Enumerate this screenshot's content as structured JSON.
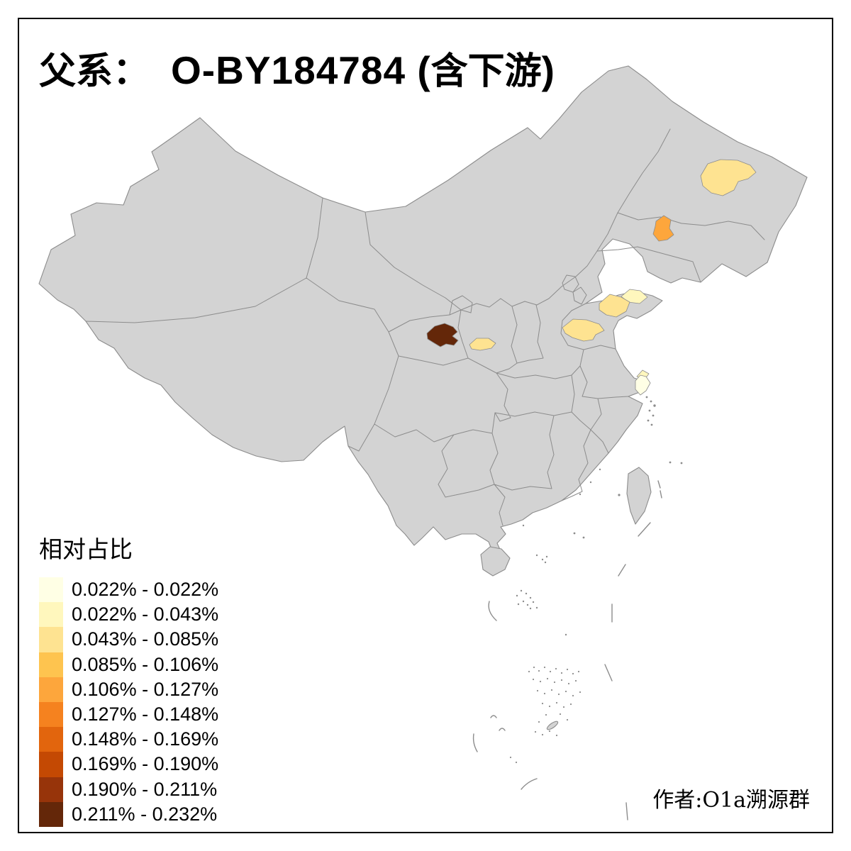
{
  "title": {
    "part1": "父系：",
    "part2": "O-BY184784 (",
    "part3": "含下游",
    "part4": ")"
  },
  "legend": {
    "title": "相对占比",
    "bins": [
      {
        "label": "0.022% - 0.022%",
        "color": "#FFFFE5"
      },
      {
        "label": "0.022% - 0.043%",
        "color": "#FFF7BD"
      },
      {
        "label": "0.043% - 0.085%",
        "color": "#FEE391"
      },
      {
        "label": "0.085% - 0.106%",
        "color": "#FEC44F"
      },
      {
        "label": "0.106% - 0.127%",
        "color": "#FDA63C"
      },
      {
        "label": "0.127% - 0.148%",
        "color": "#F5821F"
      },
      {
        "label": "0.148% - 0.169%",
        "color": "#E2650D"
      },
      {
        "label": "0.169% - 0.190%",
        "color": "#C44903"
      },
      {
        "label": "0.190% - 0.211%",
        "color": "#97340A"
      },
      {
        "label": "0.211% - 0.232%",
        "color": "#642709"
      }
    ]
  },
  "author": "作者:O1a溯源群",
  "map": {
    "base_fill": "#D3D3D3",
    "border_color": "#8C8C8C",
    "regions": [
      {
        "id": "suihua-heilongjiang",
        "bin": 2
      },
      {
        "id": "changchun-jilin",
        "bin": 4
      },
      {
        "id": "yantai-shandong",
        "bin": 1
      },
      {
        "id": "qingdao-weifang-shandong",
        "bin": 2
      },
      {
        "id": "west-shandong",
        "bin": 2
      },
      {
        "id": "west-shaanxi",
        "bin": 2
      },
      {
        "id": "southeast-gansu",
        "bin": 9
      },
      {
        "id": "shanghai-area",
        "bin": 0
      },
      {
        "id": "suzhou-sliver",
        "bin": 1
      }
    ]
  }
}
